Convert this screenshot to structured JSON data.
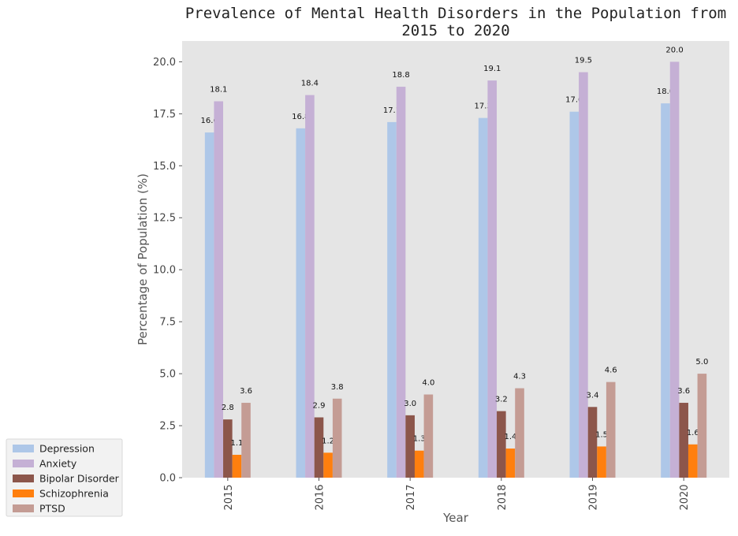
{
  "chart_data": {
    "type": "bar",
    "title": "Prevalence of Mental Health Disorders in the Population from 2015 to 2020",
    "title_lines": [
      "Prevalence of Mental Health Disorders in the Population from",
      "2015 to 2020"
    ],
    "xlabel": "Year",
    "ylabel": "Percentage of Population (%)",
    "categories": [
      "2015",
      "2016",
      "2017",
      "2018",
      "2019",
      "2020"
    ],
    "ylim": [
      0,
      21
    ],
    "yticks": [
      "0.0",
      "2.5",
      "5.0",
      "7.5",
      "10.0",
      "12.5",
      "15.0",
      "17.5",
      "20.0"
    ],
    "grid": false,
    "legend_position": "bottom-left outside",
    "background": "#e5e5e5",
    "series": [
      {
        "name": "Depression",
        "color": "#aec7e8",
        "values": [
          16.6,
          16.8,
          17.1,
          17.3,
          17.6,
          18.0
        ]
      },
      {
        "name": "Anxiety",
        "color": "#c5b0d5",
        "values": [
          18.1,
          18.4,
          18.8,
          19.1,
          19.5,
          20.0
        ]
      },
      {
        "name": "Bipolar Disorder",
        "color": "#8c564b",
        "values": [
          2.8,
          2.9,
          3.0,
          3.2,
          3.4,
          3.6
        ]
      },
      {
        "name": "Schizophrenia",
        "color": "#ff7f0e",
        "values": [
          1.1,
          1.2,
          1.3,
          1.4,
          1.5,
          1.6
        ]
      },
      {
        "name": "PTSD",
        "color": "#c49c94",
        "values": [
          3.6,
          3.8,
          4.0,
          4.3,
          4.6,
          5.0
        ]
      }
    ]
  }
}
